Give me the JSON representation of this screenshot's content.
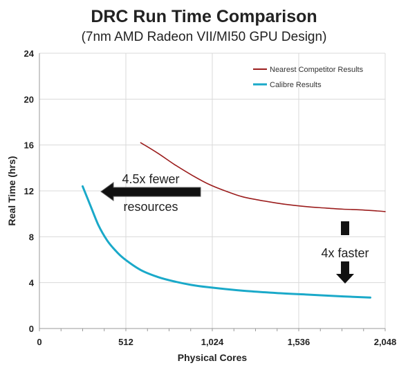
{
  "chart_data": {
    "type": "line",
    "title": "DRC Run Time Comparison",
    "subtitle": "(7nm AMD Radeon VII/MI50 GPU Design)",
    "xlabel": "Physical Cores",
    "ylabel": "Real Time (hrs)",
    "xlim": [
      0,
      2048
    ],
    "ylim": [
      0,
      24
    ],
    "x_ticks": [
      0,
      512,
      1024,
      1536,
      2048
    ],
    "x_tick_labels": [
      "0",
      "512",
      "1,024",
      "1,536",
      "2,048"
    ],
    "y_ticks": [
      0,
      4,
      8,
      12,
      16,
      20,
      24
    ],
    "grid": true,
    "legend_position": "top-right",
    "series": [
      {
        "name": "Nearest Competitor Results",
        "color": "#9b1c1c",
        "x": [
          600,
          700,
          800,
          900,
          1000,
          1100,
          1200,
          1300,
          1400,
          1500,
          1600,
          1700,
          1800,
          1900,
          2000,
          2048
        ],
        "y": [
          16.2,
          15.3,
          14.3,
          13.4,
          12.6,
          12.0,
          11.5,
          11.2,
          10.95,
          10.75,
          10.6,
          10.5,
          10.4,
          10.35,
          10.25,
          10.2
        ]
      },
      {
        "name": "Calibre Results",
        "color": "#1aa9c9",
        "x": [
          256,
          300,
          350,
          400,
          450,
          500,
          600,
          700,
          800,
          900,
          1000,
          1200,
          1400,
          1600,
          1800,
          1960
        ],
        "y": [
          12.4,
          10.8,
          9.0,
          7.7,
          6.8,
          6.1,
          5.1,
          4.5,
          4.1,
          3.8,
          3.6,
          3.3,
          3.1,
          2.95,
          2.8,
          2.7
        ]
      }
    ],
    "annotations": [
      {
        "text_line1": "4.5x fewer",
        "text_line2": "resources",
        "direction": "left"
      },
      {
        "text": "4x faster",
        "direction": "down"
      }
    ]
  }
}
